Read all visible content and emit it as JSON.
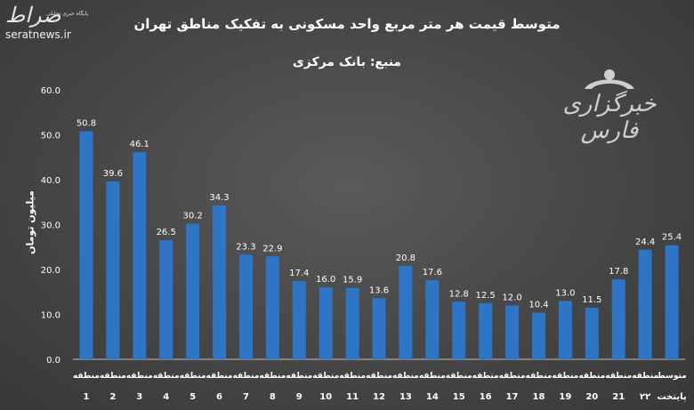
{
  "brand": {
    "logo": "صراط",
    "tagline": "پایگاه خبری تحلیلی",
    "url": "seratnews.ir"
  },
  "watermark": {
    "text": "خبرگزاری فارس"
  },
  "chart_data": {
    "type": "bar",
    "title": "متوسط قیمت هر متر مربع واحد مسکونی به تفکیک مناطق تهران",
    "subtitle": "منبع: بانک مرکزی",
    "ylabel": "میلیون تومان",
    "xlabel": "",
    "ylim": [
      0,
      60
    ],
    "yticks": [
      "0.0",
      "10.0",
      "20.0",
      "30.0",
      "40.0",
      "50.0",
      "60.0"
    ],
    "categories": [
      [
        "منطقه",
        "1"
      ],
      [
        "منطقه",
        "2"
      ],
      [
        "منطقه",
        "3"
      ],
      [
        "منطقه",
        "4"
      ],
      [
        "منطقه",
        "5"
      ],
      [
        "منطقه",
        "6"
      ],
      [
        "منطقه",
        "7"
      ],
      [
        "منطقه",
        "8"
      ],
      [
        "منطقه",
        "9"
      ],
      [
        "منطقه",
        "10"
      ],
      [
        "منطقه",
        "11"
      ],
      [
        "منطقه",
        "12"
      ],
      [
        "منطقه",
        "13"
      ],
      [
        "منطقه",
        "14"
      ],
      [
        "منطقه",
        "15"
      ],
      [
        "منطقه",
        "16"
      ],
      [
        "منطقه",
        "17"
      ],
      [
        "منطقه",
        "18"
      ],
      [
        "منطقه",
        "19"
      ],
      [
        "منطقه",
        "20"
      ],
      [
        "منطقه",
        "21"
      ],
      [
        "منطقه",
        "۲۲"
      ],
      [
        "متوسط",
        "پایتخت"
      ]
    ],
    "values": [
      50.8,
      39.6,
      46.1,
      26.5,
      30.2,
      34.3,
      23.3,
      22.9,
      17.4,
      16.0,
      15.9,
      13.6,
      20.8,
      17.6,
      12.8,
      12.5,
      12.0,
      10.4,
      13.0,
      11.5,
      17.8,
      24.4,
      25.4
    ],
    "labels": [
      "50.8",
      "39.6",
      "46.1",
      "26.5",
      "30.2",
      "34.3",
      "23.3",
      "22.9",
      "17.4",
      "16.0",
      "15.9",
      "13.6",
      "20.8",
      "17.6",
      "12.8",
      "12.5",
      "12.0",
      "10.4",
      "13.0",
      "11.5",
      "17.8",
      "24.4",
      "25.4"
    ],
    "bar_color": "#2e75c6",
    "grid": false,
    "legend": "none"
  }
}
